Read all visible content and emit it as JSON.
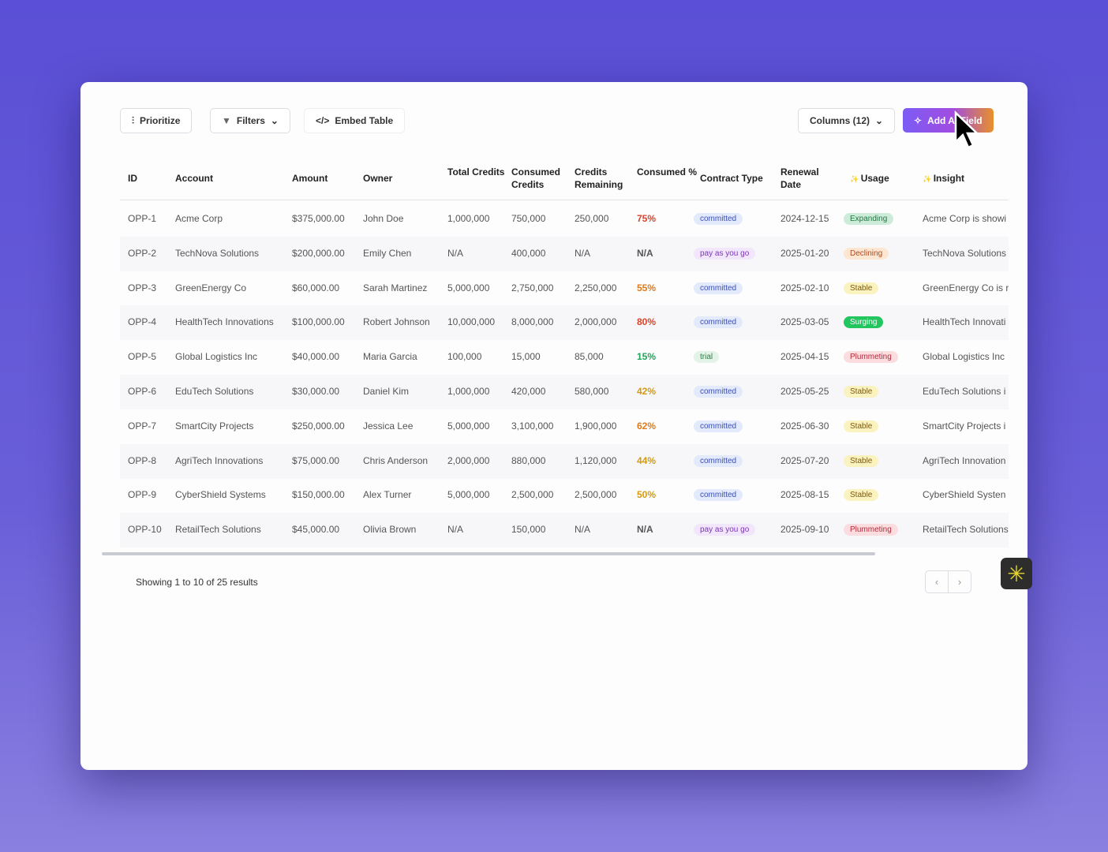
{
  "toolbar": {
    "prioritize": "Prioritize",
    "filters": "Filters",
    "embed": "Embed Table",
    "columns": "Columns (12)",
    "add_ai_field": "Add AI Field"
  },
  "columns": [
    "ID",
    "Account",
    "Amount",
    "Owner",
    "Total Credits",
    "Consumed Credits",
    "Credits Remaining",
    "Consumed %",
    "Contract Type",
    "Renewal Date",
    "Usage",
    "Insight"
  ],
  "rows": [
    [
      "OPP-1",
      "Acme Corp",
      "$375,000.00",
      "John Doe",
      "1,000,000",
      "750,000",
      "250,000",
      "75%",
      "committed",
      "2024-12-15",
      "Expanding",
      "Acme Corp is showi"
    ],
    [
      "OPP-2",
      "TechNova Solutions",
      "$200,000.00",
      "Emily Chen",
      "N/A",
      "400,000",
      "N/A",
      "N/A",
      "pay as you go",
      "2025-01-20",
      "Declining",
      "TechNova Solutions"
    ],
    [
      "OPP-3",
      "GreenEnergy Co",
      "$60,000.00",
      "Sarah Martinez",
      "5,000,000",
      "2,750,000",
      "2,250,000",
      "55%",
      "committed",
      "2025-02-10",
      "Stable",
      "GreenEnergy Co is r"
    ],
    [
      "OPP-4",
      "HealthTech Innovations",
      "$100,000.00",
      "Robert Johnson",
      "10,000,000",
      "8,000,000",
      "2,000,000",
      "80%",
      "committed",
      "2025-03-05",
      "Surging",
      "HealthTech Innovati"
    ],
    [
      "OPP-5",
      "Global Logistics Inc",
      "$40,000.00",
      "Maria Garcia",
      "100,000",
      "15,000",
      "85,000",
      "15%",
      "trial",
      "2025-04-15",
      "Plummeting",
      "Global Logistics Inc"
    ],
    [
      "OPP-6",
      "EduTech Solutions",
      "$30,000.00",
      "Daniel Kim",
      "1,000,000",
      "420,000",
      "580,000",
      "42%",
      "committed",
      "2025-05-25",
      "Stable",
      "EduTech Solutions i"
    ],
    [
      "OPP-7",
      "SmartCity Projects",
      "$250,000.00",
      "Jessica Lee",
      "5,000,000",
      "3,100,000",
      "1,900,000",
      "62%",
      "committed",
      "2025-06-30",
      "Stable",
      "SmartCity Projects i"
    ],
    [
      "OPP-8",
      "AgriTech Innovations",
      "$75,000.00",
      "Chris Anderson",
      "2,000,000",
      "880,000",
      "1,120,000",
      "44%",
      "committed",
      "2025-07-20",
      "Stable",
      "AgriTech Innovation"
    ],
    [
      "OPP-9",
      "CyberShield Systems",
      "$150,000.00",
      "Alex Turner",
      "5,000,000",
      "2,500,000",
      "2,500,000",
      "50%",
      "committed",
      "2025-08-15",
      "Stable",
      "CyberShield Systen"
    ],
    [
      "OPP-10",
      "RetailTech Solutions",
      "$45,000.00",
      "Olivia Brown",
      "N/A",
      "150,000",
      "N/A",
      "N/A",
      "pay as you go",
      "2025-09-10",
      "Plummeting",
      "RetailTech Solutions"
    ]
  ],
  "footer": {
    "showing": "Showing 1 to 10 of 25 results"
  },
  "colors": {
    "committed": [
      "#e3eafc",
      "#3b4fb8"
    ],
    "pay as you go": [
      "#f1e6fb",
      "#7b35b5"
    ],
    "trial": [
      "#e3f3e8",
      "#2f7a47"
    ],
    "Expanding": [
      "#cdebd9",
      "#1f7a44"
    ],
    "Declining": [
      "#fde7d3",
      "#b3471d"
    ],
    "Stable": [
      "#fbf3bf",
      "#7a5a10"
    ],
    "Surging": [
      "#22c55e",
      "#ffffff"
    ],
    "Plummeting": [
      "#fbdde0",
      "#b42a3a"
    ]
  }
}
